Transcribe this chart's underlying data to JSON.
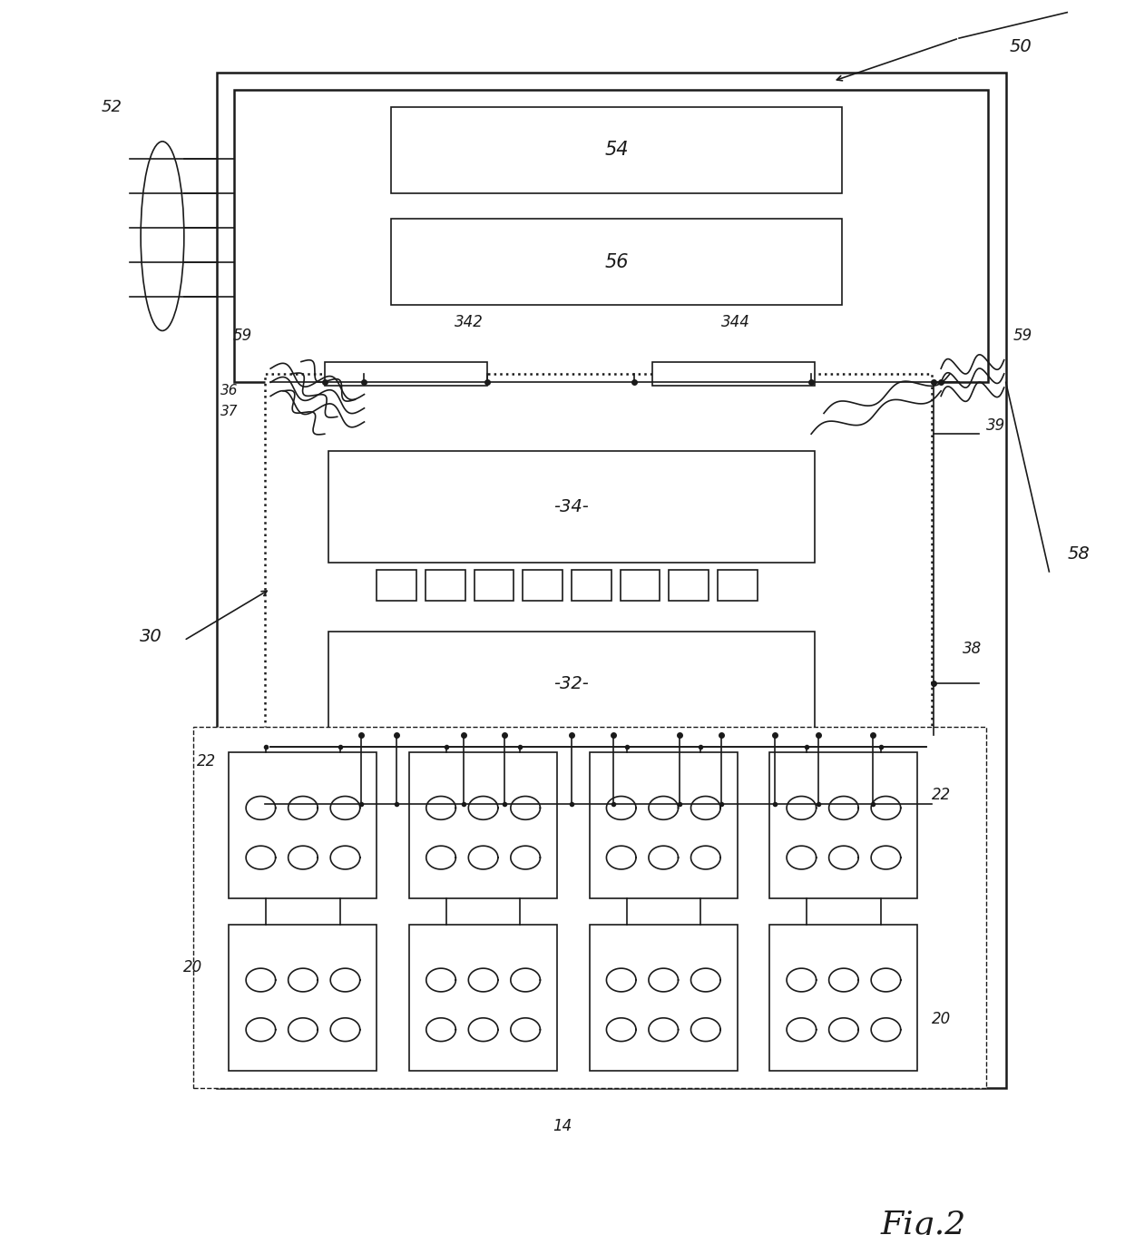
{
  "bg_color": "#ffffff",
  "line_color": "#1a1a1a",
  "fig_width": 12.4,
  "fig_height": 13.61,
  "lw_main": 1.8,
  "lw_thin": 1.2,
  "lw_dashed": 1.0
}
